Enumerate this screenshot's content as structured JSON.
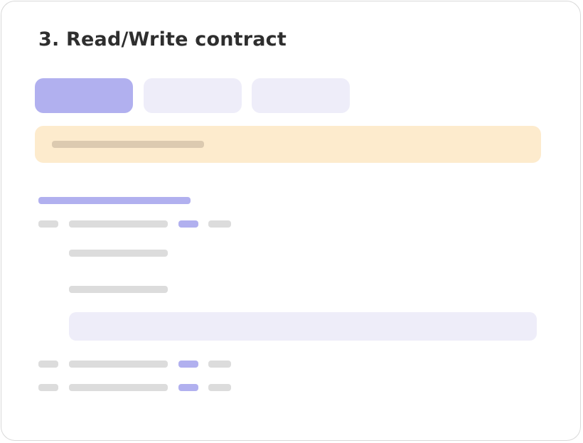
{
  "title": "3. Read/Write contract",
  "colors": {
    "accent": "#b1b0ef",
    "tab_inactive": "#eeedf9",
    "notice_bg": "#fdebcd",
    "notice_bar": "#dccab0",
    "placeholder": "#dcdcdc"
  },
  "tabs": [
    {
      "active": true
    },
    {
      "active": false
    },
    {
      "active": false
    }
  ]
}
